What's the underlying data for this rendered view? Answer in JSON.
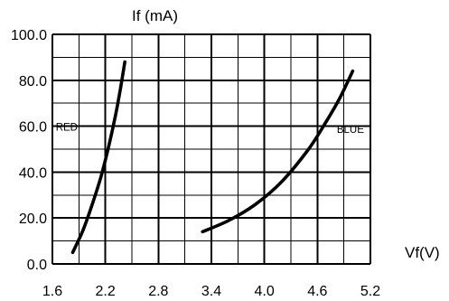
{
  "chart_data": {
    "type": "line",
    "ylabel": "If (mA)",
    "xlabel": "Vf(V)",
    "xlim": [
      1.6,
      5.2
    ],
    "ylim": [
      0,
      100
    ],
    "x_tick_labels": [
      "1.6",
      "2.2",
      "2.8",
      "3.4",
      "4.0",
      "4.6",
      "5.2"
    ],
    "y_tick_labels": [
      "0.0",
      "20.0",
      "40.0",
      "60.0",
      "80.0",
      "100.0"
    ],
    "grid": true,
    "series": [
      {
        "name": "RED",
        "x": [
          1.83,
          1.95,
          2.06,
          2.15,
          2.23,
          2.3,
          2.36,
          2.42
        ],
        "y": [
          5,
          15,
          27,
          38,
          50,
          62,
          74,
          88
        ]
      },
      {
        "name": "BLUE",
        "x": [
          3.3,
          3.6,
          3.9,
          4.2,
          4.5,
          4.7,
          4.85,
          5.0
        ],
        "y": [
          14,
          19,
          26,
          36,
          50,
          62,
          72,
          84
        ]
      }
    ]
  }
}
